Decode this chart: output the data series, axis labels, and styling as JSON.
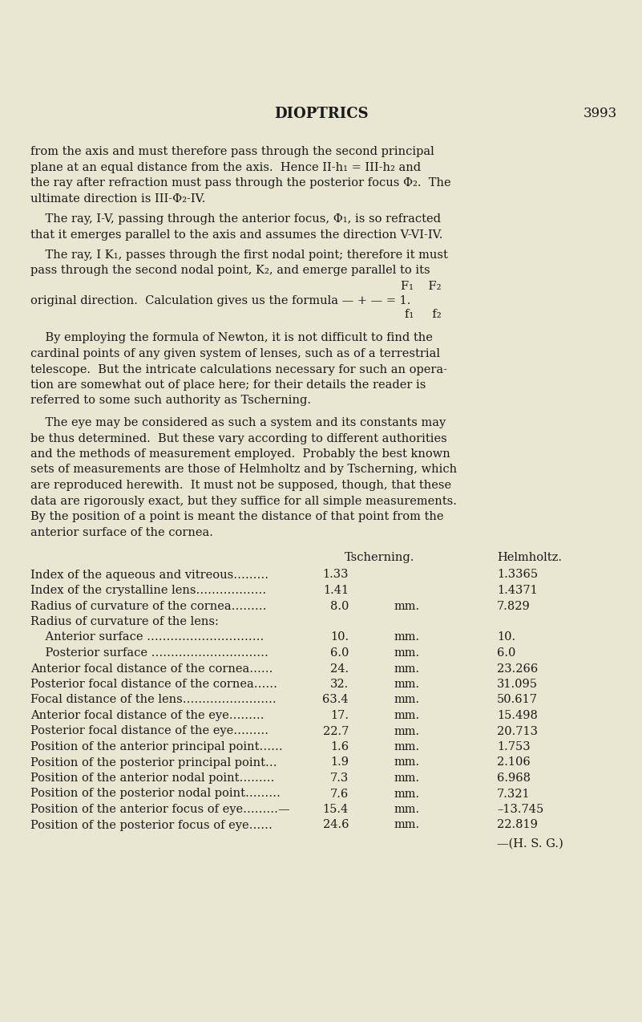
{
  "background_color": "#e9e6d2",
  "title": "DIOPTRICS",
  "page_number": "3993",
  "text_color": "#1a1a1a",
  "p1": "from the axis and must therefore pass through the second principal\nplane at an equal distance from the axis.  Hence II-h₁ = III-h₂ and\nthe ray after refraction must pass through the posterior focus Φ₂.  The\nultimate direction is III-Φ₂-IV.",
  "p2": "    The ray, I-V, passing through the anterior focus, Φ₁, is so refracted\nthat it emerges parallel to the axis and assumes the direction V-VI-IV.",
  "p3a": "    The ray, I K₁, passes through the first nodal point; therefore it must\npass through the second nodal point, K₂, and emerge parallel to its",
  "formula_numerator": "F₁    F₂",
  "formula_main": "original direction.  Calculation gives us the formula — + — = 1.",
  "formula_denominator": "f₁     f₂",
  "p4": "    By employing the formula of Newton, it is not difficult to find the\ncardinal points of any given system of lenses, such as of a terrestrial\ntelescope.  But the intricate calculations necessary for such an opera-\ntion are somewhat out of place here; for their details the reader is\nreferred to some such authority as Tscherning.",
  "p5": "    The eye may be considered as such a system and its constants may\nbe thus determined.  But these vary according to different authorities\nand the methods of measurement employed.  Probably the best known\nsets of measurements are those of Helmholtz and by Tscherning, which\nare reproduced herewith.  It must not be supposed, though, that these\ndata are rigorously exact, but they suffice for all simple measurements.\nBy the position of a point is meant the distance of that point from the\nanterior surface of the cornea.",
  "table_col1_header": "Tscherning.",
  "table_col2_header": "Helmholtz.",
  "table_rows": [
    [
      "Index of the aqueous and vitreous………",
      "1.33",
      "",
      "1.3365"
    ],
    [
      "Index of the crystalline lens………………",
      "1.41",
      "",
      "1.4371"
    ],
    [
      "Radius of curvature of the cornea………",
      "8.0",
      "mm.",
      "7.829"
    ],
    [
      "Radius of curvature of the lens:",
      "",
      "",
      ""
    ],
    [
      "    Anterior surface …………………………",
      "10.",
      "mm.",
      "10."
    ],
    [
      "    Posterior surface …………………………",
      "6.0",
      "mm.",
      "6.0"
    ],
    [
      "Anterior focal distance of the cornea……",
      "24.",
      "mm.",
      "23.266"
    ],
    [
      "Posterior focal distance of the cornea……",
      "32.",
      "mm.",
      "31.095"
    ],
    [
      "Focal distance of the lens……………………",
      "63.4",
      "mm.",
      "50.617"
    ],
    [
      "Anterior focal distance of the eye………",
      "17.",
      "mm.",
      "15.498"
    ],
    [
      "Posterior focal distance of the eye………",
      "22.7",
      "mm.",
      "20.713"
    ],
    [
      "Position of the anterior principal point……",
      "1.6",
      "mm.",
      "1.753"
    ],
    [
      "Position of the posterior principal point…",
      "1.9",
      "mm.",
      "2.106"
    ],
    [
      "Position of the anterior nodal point………",
      "7.3",
      "mm.",
      "6.968"
    ],
    [
      "Position of the posterior nodal point………",
      "7.6",
      "mm.",
      "7.321"
    ],
    [
      "Position of the anterior focus of eye………—",
      "15.4",
      "mm.",
      "–13.745"
    ],
    [
      "Position of the posterior focus of eye……",
      "24.6",
      "mm.",
      "22.819"
    ]
  ],
  "footer": "—(H. S. G.)"
}
